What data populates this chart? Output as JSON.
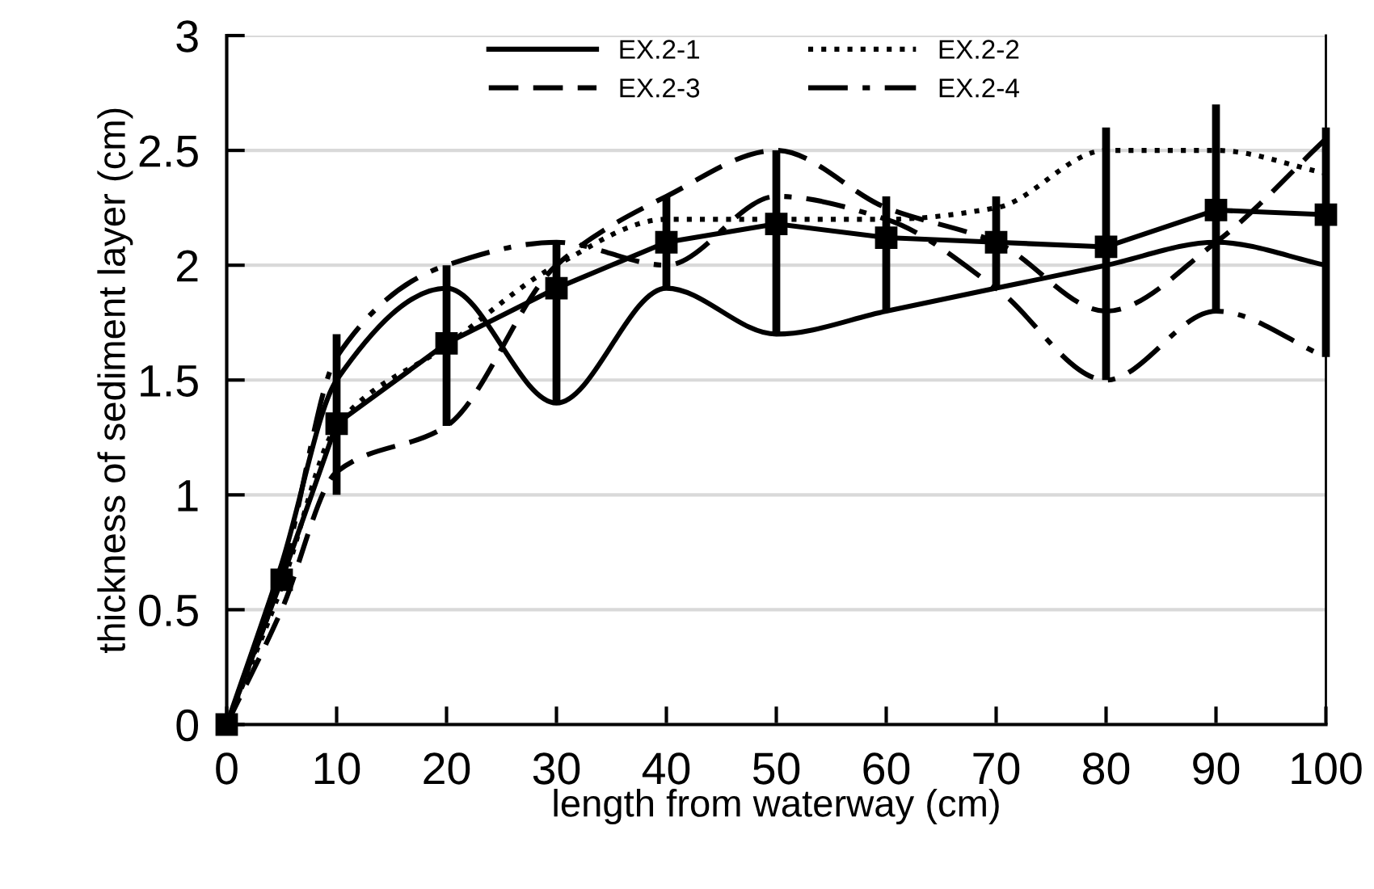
{
  "chart_data": {
    "type": "line",
    "xlabel": "length from waterway (cm)",
    "ylabel": "thickness of sediment layer (cm)",
    "xlim": [
      0,
      100
    ],
    "xticks": [
      0,
      10,
      20,
      30,
      40,
      50,
      60,
      70,
      80,
      90,
      100
    ],
    "ylim": [
      0,
      3
    ],
    "yticks": [
      0,
      0.5,
      1,
      1.5,
      2,
      2.5,
      3
    ],
    "grid": "y",
    "legend": "top",
    "x": [
      0,
      5,
      10,
      20,
      30,
      40,
      50,
      60,
      70,
      80,
      90,
      100
    ],
    "series": [
      {
        "name": "EX.2-1",
        "color": "#000000",
        "line_style": "solid",
        "marker": "none",
        "values": [
          0,
          0.7,
          1.5,
          1.9,
          1.4,
          1.9,
          1.7,
          1.8,
          1.9,
          2.0,
          2.1,
          2.0
        ]
      },
      {
        "name": "EX.2-2",
        "color": "#000000",
        "line_style": "dotted",
        "marker": "none",
        "values": [
          0,
          0.6,
          1.3,
          1.65,
          2.0,
          2.2,
          2.2,
          2.2,
          2.25,
          2.5,
          2.5,
          2.4
        ]
      },
      {
        "name": "EX.2-3",
        "color": "#000000",
        "line_style": "dashed",
        "marker": "none",
        "values": [
          0,
          0.5,
          1.1,
          1.3,
          2.0,
          2.3,
          2.5,
          2.25,
          2.1,
          1.8,
          2.1,
          2.55
        ]
      },
      {
        "name": "EX.2-4",
        "color": "#000000",
        "line_style": "dashdot",
        "marker": "none",
        "values": [
          0,
          0.65,
          1.6,
          2.0,
          2.1,
          2.0,
          2.3,
          2.2,
          1.9,
          1.5,
          1.8,
          1.6
        ]
      },
      {
        "color": "#000000",
        "line_style": "solid",
        "marker": "square",
        "values": [
          0,
          0.63,
          1.31,
          1.66,
          1.9,
          2.1,
          2.18,
          2.12,
          2.1,
          2.08,
          2.24,
          2.22
        ],
        "errors": [
          null,
          null,
          [
            1.0,
            1.7
          ],
          [
            1.3,
            2.0
          ],
          [
            1.4,
            2.1
          ],
          [
            1.9,
            2.3
          ],
          [
            1.7,
            2.5
          ],
          [
            1.8,
            2.3
          ],
          [
            1.9,
            2.3
          ],
          [
            1.5,
            2.6
          ],
          [
            1.8,
            2.7
          ],
          [
            1.6,
            2.6
          ]
        ]
      }
    ]
  }
}
